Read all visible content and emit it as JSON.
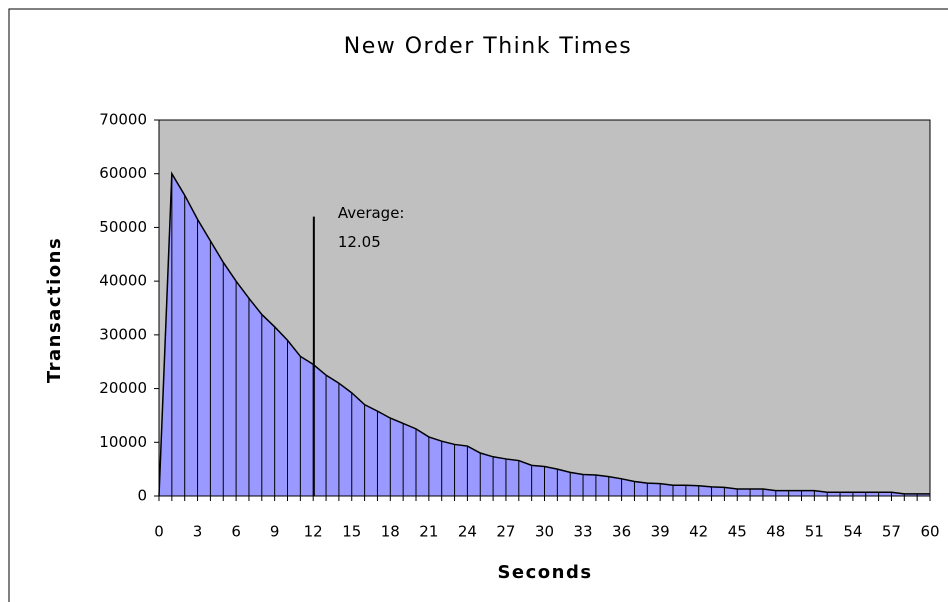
{
  "chart_data": {
    "type": "area",
    "title": "New Order Think Times",
    "x_label": "Seconds",
    "y_label": "Transactions",
    "x": [
      0,
      1,
      2,
      3,
      4,
      5,
      6,
      7,
      8,
      9,
      10,
      11,
      12,
      13,
      14,
      15,
      16,
      17,
      18,
      19,
      20,
      21,
      22,
      23,
      24,
      25,
      26,
      27,
      28,
      29,
      30,
      31,
      32,
      33,
      34,
      35,
      36,
      37,
      38,
      39,
      40,
      41,
      42,
      43,
      44,
      45,
      46,
      47,
      48,
      49,
      50,
      51,
      52,
      53,
      54,
      55,
      56,
      57,
      58,
      59,
      60
    ],
    "series": [
      {
        "name": "Transactions",
        "color": "#9999ff",
        "values": [
          0,
          60000,
          56000,
          51500,
          47500,
          43500,
          40000,
          36800,
          33800,
          31500,
          29000,
          26000,
          24500,
          22500,
          21000,
          19200,
          17000,
          15800,
          14500,
          13500,
          12500,
          11000,
          10200,
          9600,
          9300,
          8000,
          7300,
          6900,
          6600,
          5700,
          5500,
          5000,
          4400,
          4000,
          3900,
          3600,
          3200,
          2700,
          2400,
          2300,
          2000,
          2000,
          1900,
          1700,
          1600,
          1300,
          1300,
          1300,
          1000,
          1000,
          1000,
          1000,
          700,
          700,
          700,
          700,
          700,
          700,
          400,
          400,
          400
        ]
      }
    ],
    "xlim": [
      0,
      60
    ],
    "xticks": [
      0,
      3,
      6,
      9,
      12,
      15,
      18,
      21,
      24,
      27,
      30,
      33,
      36,
      39,
      42,
      45,
      48,
      51,
      54,
      57,
      60
    ],
    "ylim": [
      0,
      70000
    ],
    "yticks": [
      0,
      10000,
      20000,
      30000,
      40000,
      50000,
      60000,
      70000
    ],
    "plot_background": "#c0c0c0",
    "annotation": {
      "label": "Average:",
      "value": 12.05,
      "line_top": 52000
    }
  }
}
